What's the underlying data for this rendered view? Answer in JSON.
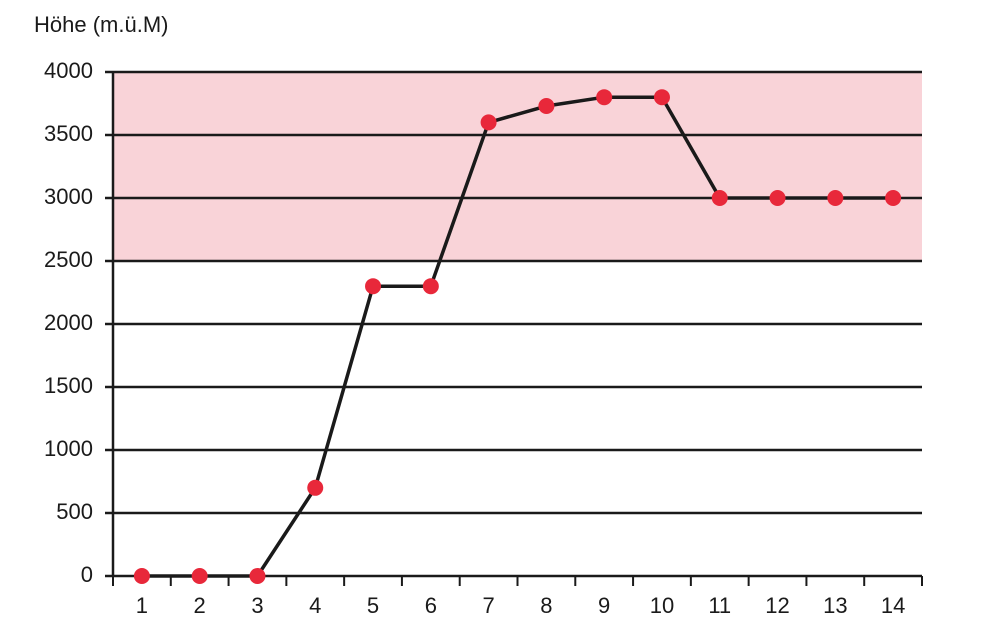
{
  "chart_data": {
    "type": "line",
    "y_label": "Höhe (m.ü.M)",
    "categories": [
      "1",
      "2",
      "3",
      "4",
      "5",
      "6",
      "7",
      "8",
      "9",
      "10",
      "11",
      "12",
      "13",
      "14"
    ],
    "values": [
      0,
      0,
      0,
      700,
      2300,
      2300,
      3600,
      3730,
      3800,
      3800,
      3000,
      3000,
      3000,
      3000
    ],
    "line_color": "#1a1a1a",
    "marker_color": "#e8283a",
    "shaded_range": [
      2500,
      4000
    ],
    "shaded_color": "#f9d3d8",
    "ylim": [
      0,
      4000
    ],
    "yticks": [
      0,
      500,
      1000,
      1500,
      2000,
      2500,
      3000,
      3500,
      4000
    ],
    "grid": true
  }
}
